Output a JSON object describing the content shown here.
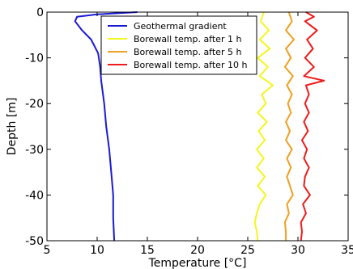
{
  "chart_data": {
    "type": "line",
    "xlabel": "Temperature [°C]",
    "ylabel": "Depth [m]",
    "xlim": [
      5,
      35
    ],
    "ylim": [
      -50,
      0
    ],
    "xticks": [
      5,
      10,
      15,
      20,
      25,
      30,
      35
    ],
    "yticks": [
      0,
      -10,
      -20,
      -30,
      -40,
      -50
    ],
    "grid": false,
    "legend_position": "top-center",
    "series": [
      {
        "name": "Geothermal gradient",
        "color": "#1a1ad6",
        "points": [
          [
            14.0,
            0
          ],
          [
            10.0,
            -0.5
          ],
          [
            8.0,
            -1
          ],
          [
            7.8,
            -2
          ],
          [
            8.5,
            -4
          ],
          [
            9.4,
            -6
          ],
          [
            10.1,
            -9
          ],
          [
            10.3,
            -12
          ],
          [
            10.4,
            -15
          ],
          [
            10.7,
            -20
          ],
          [
            10.9,
            -25
          ],
          [
            11.2,
            -30
          ],
          [
            11.4,
            -35
          ],
          [
            11.6,
            -40
          ],
          [
            11.6,
            -45
          ],
          [
            11.7,
            -50
          ]
        ]
      },
      {
        "name": "Borewall temp. after 1 h",
        "color": "#f5f51f",
        "points": [
          [
            26.6,
            0
          ],
          [
            26.3,
            -2
          ],
          [
            27.1,
            -4
          ],
          [
            26.2,
            -6
          ],
          [
            27.2,
            -8
          ],
          [
            26.0,
            -10
          ],
          [
            27.0,
            -12
          ],
          [
            26.2,
            -14
          ],
          [
            27.5,
            -16
          ],
          [
            26.4,
            -18
          ],
          [
            26.8,
            -20
          ],
          [
            26.0,
            -22
          ],
          [
            26.9,
            -24
          ],
          [
            26.1,
            -26
          ],
          [
            26.7,
            -28
          ],
          [
            25.9,
            -30
          ],
          [
            26.6,
            -32
          ],
          [
            25.9,
            -34
          ],
          [
            26.7,
            -36
          ],
          [
            26.0,
            -38
          ],
          [
            26.8,
            -40
          ],
          [
            26.2,
            -42
          ],
          [
            25.9,
            -44
          ],
          [
            25.7,
            -46
          ],
          [
            25.9,
            -48
          ],
          [
            26.0,
            -50
          ]
        ]
      },
      {
        "name": "Borewall temp. after 5 h",
        "color": "#f0a020",
        "points": [
          [
            29.1,
            0
          ],
          [
            29.4,
            -2
          ],
          [
            28.8,
            -4
          ],
          [
            29.6,
            -6
          ],
          [
            28.8,
            -8
          ],
          [
            29.3,
            -10
          ],
          [
            28.7,
            -12
          ],
          [
            29.5,
            -14
          ],
          [
            28.9,
            -16
          ],
          [
            29.4,
            -18
          ],
          [
            29.0,
            -20
          ],
          [
            29.3,
            -22
          ],
          [
            28.8,
            -24
          ],
          [
            29.2,
            -26
          ],
          [
            28.8,
            -28
          ],
          [
            29.4,
            -30
          ],
          [
            28.9,
            -32
          ],
          [
            29.3,
            -34
          ],
          [
            28.9,
            -36
          ],
          [
            29.2,
            -38
          ],
          [
            29.5,
            -40
          ],
          [
            28.9,
            -42
          ],
          [
            29.1,
            -44
          ],
          [
            28.7,
            -46
          ],
          [
            28.8,
            -48
          ],
          [
            28.8,
            -50
          ]
        ]
      },
      {
        "name": "Borewall temp. after 10 h",
        "color": "#ee1c1c",
        "points": [
          [
            30.8,
            0
          ],
          [
            31.6,
            -1
          ],
          [
            30.7,
            -2
          ],
          [
            31.9,
            -4
          ],
          [
            30.9,
            -6
          ],
          [
            31.5,
            -8
          ],
          [
            30.7,
            -10
          ],
          [
            31.6,
            -12
          ],
          [
            30.6,
            -14
          ],
          [
            32.6,
            -15
          ],
          [
            30.8,
            -16
          ],
          [
            31.1,
            -18
          ],
          [
            30.7,
            -20
          ],
          [
            31.1,
            -22
          ],
          [
            30.6,
            -24
          ],
          [
            31.0,
            -26
          ],
          [
            30.4,
            -28
          ],
          [
            30.9,
            -30
          ],
          [
            30.6,
            -32
          ],
          [
            31.1,
            -34
          ],
          [
            30.7,
            -36
          ],
          [
            30.6,
            -38
          ],
          [
            31.2,
            -40
          ],
          [
            30.5,
            -42
          ],
          [
            30.8,
            -44
          ],
          [
            30.3,
            -46
          ],
          [
            30.4,
            -48
          ],
          [
            30.3,
            -50
          ]
        ]
      }
    ]
  }
}
